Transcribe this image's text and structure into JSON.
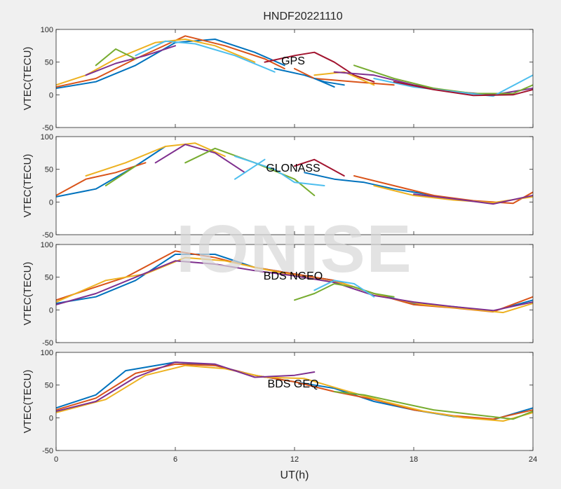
{
  "chart_data": {
    "type": "line",
    "title": "HNDF20221110",
    "xlabel": "UT(h)",
    "ylabel": "VTEC(TECU)",
    "xlim": [
      0,
      24
    ],
    "ylim": [
      -50,
      100
    ],
    "xticks": [
      "0",
      "6",
      "12",
      "18",
      "24"
    ],
    "yticks": [
      "-50",
      "0",
      "50",
      "100"
    ],
    "watermark": "IONISE",
    "colors": [
      "#0072bd",
      "#d95319",
      "#edb120",
      "#7e2f8e",
      "#77ac30",
      "#4dbeee",
      "#a2142f"
    ],
    "panels": [
      {
        "label": "GPS",
        "series": [
          {
            "x": [
              0,
              2,
              4,
              6,
              8,
              10,
              11.5
            ],
            "y": [
              10,
              20,
              45,
              80,
              85,
              65,
              45
            ]
          },
          {
            "x": [
              0,
              2,
              4,
              6.5,
              8.5,
              10.5,
              11.5
            ],
            "y": [
              12,
              25,
              55,
              90,
              75,
              55,
              40
            ]
          },
          {
            "x": [
              0,
              1.5,
              3,
              5,
              6.5,
              8,
              10
            ],
            "y": [
              15,
              30,
              55,
              80,
              85,
              75,
              50
            ]
          },
          {
            "x": [
              1.5,
              3,
              4.5,
              6
            ],
            "y": [
              30,
              48,
              60,
              75
            ]
          },
          {
            "x": [
              2,
              3,
              4
            ],
            "y": [
              45,
              70,
              55
            ]
          },
          {
            "x": [
              4,
              5.5,
              7,
              9,
              11
            ],
            "y": [
              60,
              82,
              78,
              60,
              35
            ]
          },
          {
            "x": [
              10.5,
              12,
              13,
              14,
              15,
              16
            ],
            "y": [
              50,
              60,
              65,
              50,
              30,
              20
            ]
          },
          {
            "x": [
              11,
              12.5,
              13.5,
              14.5
            ],
            "y": [
              40,
              30,
              20,
              15
            ]
          },
          {
            "x": [
              12,
              13,
              15,
              17
            ],
            "y": [
              40,
              25,
              20,
              15
            ]
          },
          {
            "x": [
              13,
              14.5,
              16
            ],
            "y": [
              30,
              35,
              15
            ]
          },
          {
            "x": [
              14,
              16,
              18,
              20,
              22,
              24
            ],
            "y": [
              35,
              30,
              15,
              5,
              0,
              10
            ]
          },
          {
            "x": [
              15,
              17,
              19,
              21,
              23,
              24
            ],
            "y": [
              45,
              25,
              10,
              2,
              2,
              15
            ]
          },
          {
            "x": [
              16,
              18,
              20,
              22,
              24
            ],
            "y": [
              25,
              12,
              5,
              -2,
              30
            ]
          },
          {
            "x": [
              17,
              19,
              21,
              23,
              24
            ],
            "y": [
              20,
              8,
              -1,
              0,
              8
            ]
          },
          {
            "x": [
              13,
              14
            ],
            "y": [
              25,
              12
            ]
          }
        ]
      },
      {
        "label": "GLONASS",
        "series": [
          {
            "x": [
              0,
              2,
              4,
              5.5
            ],
            "y": [
              8,
              20,
              55,
              85
            ]
          },
          {
            "x": [
              0,
              1.5,
              3,
              4.5
            ],
            "y": [
              10,
              35,
              45,
              60
            ]
          },
          {
            "x": [
              1.5,
              3.5,
              5.5,
              7,
              8.5
            ],
            "y": [
              40,
              60,
              85,
              90,
              70
            ]
          },
          {
            "x": [
              5,
              6.5,
              8,
              9.5
            ],
            "y": [
              60,
              88,
              75,
              45
            ]
          },
          {
            "x": [
              6.5,
              8,
              10,
              12,
              13
            ],
            "y": [
              60,
              82,
              60,
              35,
              10
            ]
          },
          {
            "x": [
              9,
              11,
              12,
              13.5
            ],
            "y": [
              70,
              50,
              30,
              25
            ]
          },
          {
            "x": [
              12,
              13,
              14.5
            ],
            "y": [
              55,
              65,
              40
            ]
          },
          {
            "x": [
              12.5,
              14,
              15.5,
              17,
              19
            ],
            "y": [
              45,
              35,
              30,
              20,
              10
            ]
          },
          {
            "x": [
              15,
              17,
              19,
              21,
              23,
              24
            ],
            "y": [
              40,
              25,
              10,
              2,
              -2,
              15
            ]
          },
          {
            "x": [
              16,
              18,
              20,
              22,
              24
            ],
            "y": [
              25,
              10,
              3,
              -1,
              8
            ]
          },
          {
            "x": [
              18,
              20,
              22,
              24
            ],
            "y": [
              12,
              5,
              -3,
              10
            ]
          },
          {
            "x": [
              2.5,
              4
            ],
            "y": [
              25,
              55
            ]
          },
          {
            "x": [
              9,
              10.5
            ],
            "y": [
              35,
              65
            ]
          }
        ]
      },
      {
        "label": "BDS NGEO",
        "series": [
          {
            "x": [
              0,
              2,
              4,
              6,
              8,
              10,
              12,
              14,
              16,
              18,
              20,
              22,
              24
            ],
            "y": [
              10,
              20,
              45,
              85,
              85,
              65,
              55,
              45,
              25,
              10,
              5,
              -2,
              15
            ]
          },
          {
            "x": [
              0,
              1.5,
              3.5,
              6,
              8,
              10,
              12,
              14,
              16,
              18,
              20,
              22,
              24
            ],
            "y": [
              15,
              30,
              50,
              90,
              80,
              65,
              55,
              45,
              25,
              8,
              3,
              -3,
              20
            ]
          },
          {
            "x": [
              0,
              2.5,
              4.5,
              6.5,
              8.5,
              10.5,
              12.5,
              14.5,
              16.5,
              18.5,
              20.5,
              22.5,
              24
            ],
            "y": [
              12,
              45,
              55,
              80,
              75,
              62,
              50,
              40,
              20,
              8,
              2,
              -4,
              10
            ]
          },
          {
            "x": [
              0,
              2,
              4,
              6,
              8,
              10,
              12,
              14,
              16,
              18,
              20,
              22,
              24
            ],
            "y": [
              8,
              25,
              50,
              75,
              70,
              60,
              52,
              42,
              22,
              12,
              5,
              -1,
              12
            ]
          },
          {
            "x": [
              12,
              13,
              14,
              15,
              16,
              17
            ],
            "y": [
              15,
              25,
              40,
              35,
              25,
              20
            ]
          },
          {
            "x": [
              13,
              14,
              15,
              16
            ],
            "y": [
              30,
              45,
              40,
              20
            ]
          }
        ]
      },
      {
        "label": "BDS GEQ",
        "series": [
          {
            "x": [
              0,
              2,
              3.5,
              6,
              8,
              10,
              12,
              14,
              16,
              18,
              20,
              22,
              24
            ],
            "y": [
              15,
              35,
              72,
              85,
              80,
              65,
              55,
              45,
              25,
              12,
              2,
              -3,
              15
            ]
          },
          {
            "x": [
              0,
              2,
              4,
              6,
              8,
              10,
              12,
              14,
              16,
              18,
              20,
              22,
              24
            ],
            "y": [
              12,
              30,
              68,
              82,
              80,
              65,
              55,
              40,
              28,
              12,
              3,
              -2,
              12
            ]
          },
          {
            "x": [
              0,
              2.5,
              4.5,
              6.5,
              8.5,
              10.5,
              12.5,
              14.5,
              16.5,
              18.5,
              20.5,
              22.5,
              24
            ],
            "y": [
              8,
              28,
              65,
              80,
              75,
              62,
              60,
              42,
              25,
              10,
              0,
              -5,
              8
            ]
          },
          {
            "x": [
              0,
              2,
              4,
              6,
              8,
              10,
              12,
              13
            ],
            "y": [
              10,
              25,
              62,
              85,
              82,
              62,
              65,
              70
            ]
          },
          {
            "x": [
              14,
              15.5,
              17,
              19,
              21,
              23,
              24
            ],
            "y": [
              40,
              35,
              25,
              12,
              5,
              -2,
              10
            ]
          }
        ]
      }
    ]
  }
}
